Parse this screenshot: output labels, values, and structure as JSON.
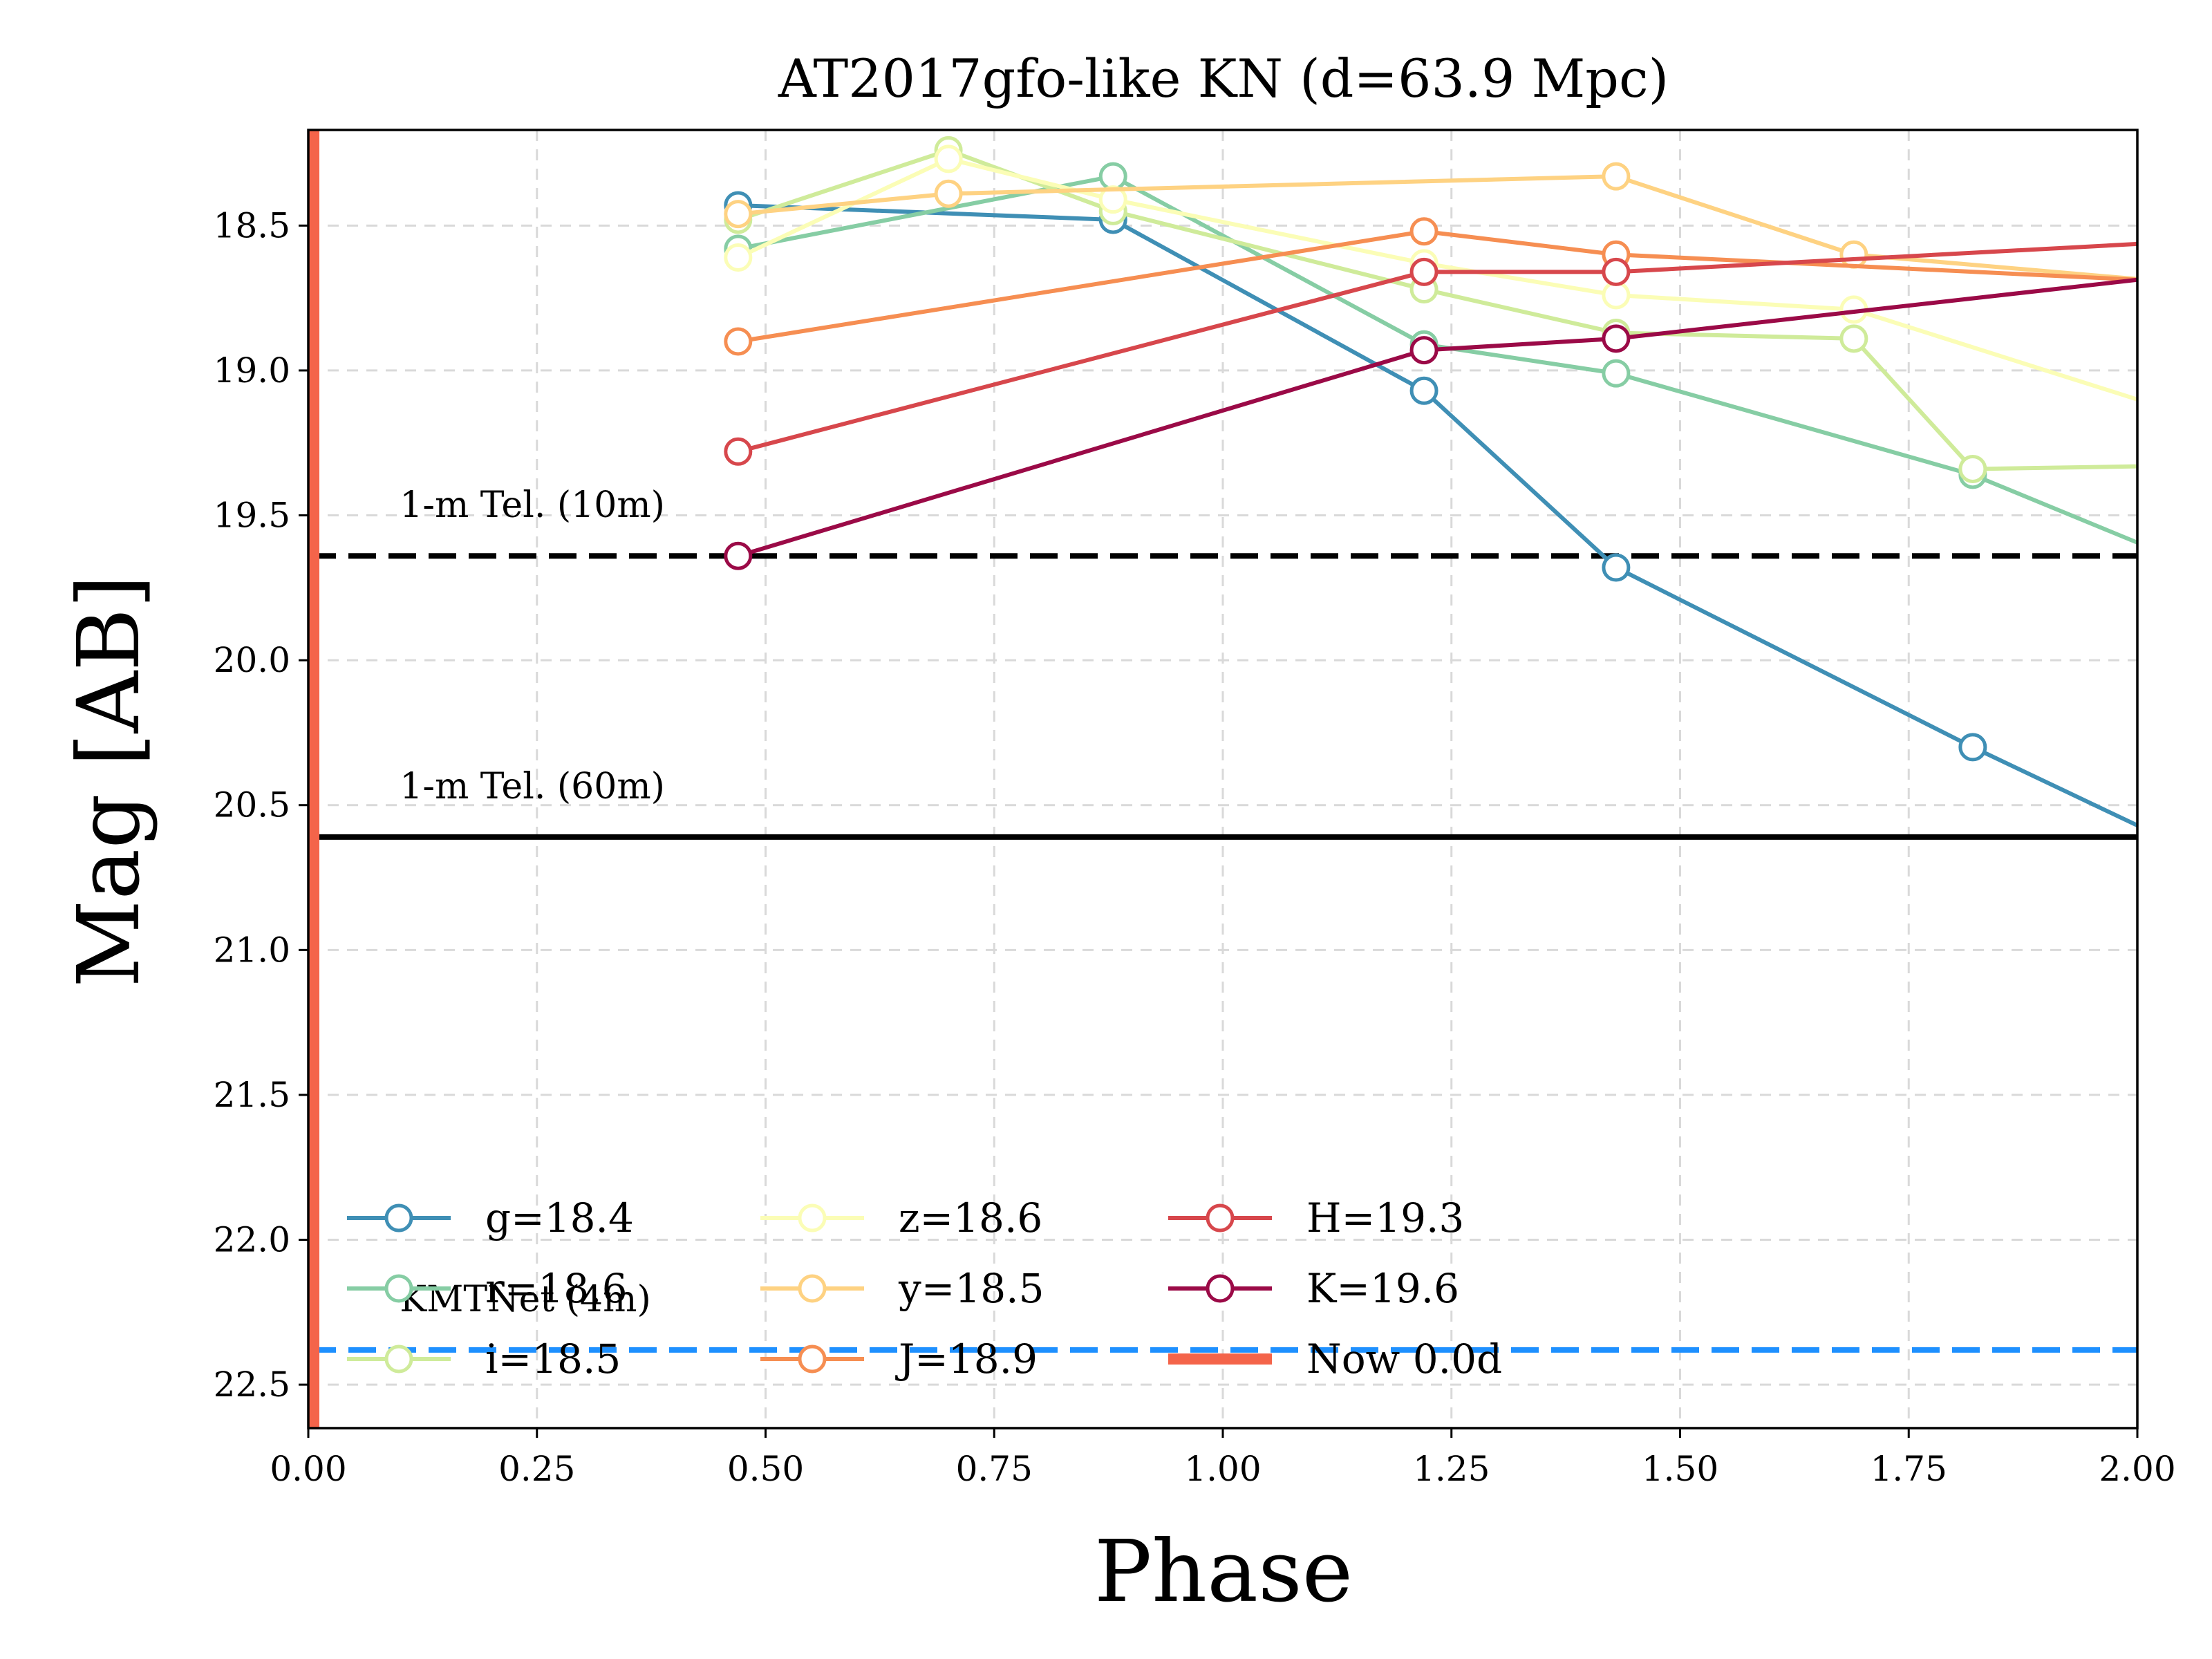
{
  "chart_data": {
    "type": "line",
    "title": "AT2017gfo-like KN (d=63.9 Mpc)",
    "xlabel": "Phase",
    "ylabel": "Mag [AB]",
    "xlim": [
      0.0,
      2.0
    ],
    "ylim": [
      22.65,
      18.17
    ],
    "y_inverted": true,
    "grid": true,
    "legend_location": "lower-left",
    "legend_columns": 3,
    "x_ticks": [
      0.0,
      0.25,
      0.5,
      0.75,
      1.0,
      1.25,
      1.5,
      1.75,
      2.0
    ],
    "x_tick_labels": [
      "0.00",
      "0.25",
      "0.50",
      "0.75",
      "1.00",
      "1.25",
      "1.50",
      "1.75",
      "2.00"
    ],
    "y_ticks": [
      18.5,
      19.0,
      19.5,
      20.0,
      20.5,
      21.0,
      21.5,
      22.0,
      22.5
    ],
    "y_tick_labels": [
      "18.5",
      "19.0",
      "19.5",
      "20.0",
      "20.5",
      "21.0",
      "21.5",
      "22.0",
      "22.5"
    ],
    "series": [
      {
        "name": "g=18.4",
        "color": "#3f8fb5",
        "x": [
          0.47,
          0.88,
          1.22,
          1.43,
          1.82,
          2.02
        ],
        "y": [
          18.43,
          18.48,
          19.07,
          19.68,
          20.3,
          20.6
        ]
      },
      {
        "name": "r=18.6",
        "color": "#86cda4",
        "x": [
          0.47,
          0.88,
          1.22,
          1.43,
          1.82,
          2.02
        ],
        "y": [
          18.58,
          18.33,
          18.91,
          19.01,
          19.36,
          19.62
        ]
      },
      {
        "name": "i=18.5",
        "color": "#cfeb9a",
        "x": [
          0.47,
          0.7,
          0.88,
          1.22,
          1.43,
          1.69,
          1.82,
          2.02
        ],
        "y": [
          18.48,
          18.24,
          18.45,
          18.72,
          18.87,
          18.89,
          19.34,
          19.33
        ]
      },
      {
        "name": "z=18.6",
        "color": "#fbfdb6",
        "x": [
          0.47,
          0.7,
          0.88,
          1.22,
          1.43,
          1.69,
          2.02
        ],
        "y": [
          18.61,
          18.27,
          18.41,
          18.63,
          18.74,
          18.79,
          19.12
        ]
      },
      {
        "name": "y=18.5",
        "color": "#fed282",
        "x": [
          0.47,
          0.7,
          1.43,
          1.69,
          2.02
        ],
        "y": [
          18.46,
          18.39,
          18.33,
          18.6,
          18.69
        ]
      },
      {
        "name": "J=18.9",
        "color": "#f68e52",
        "x": [
          0.47,
          1.22,
          1.43,
          2.02
        ],
        "y": [
          18.9,
          18.52,
          18.6,
          18.69
        ]
      },
      {
        "name": "H=19.3",
        "color": "#d7474c",
        "x": [
          0.47,
          1.22,
          1.43,
          2.02
        ],
        "y": [
          19.28,
          18.66,
          18.66,
          18.56
        ]
      },
      {
        "name": "K=19.6",
        "color": "#9b0a47",
        "x": [
          0.47,
          1.22,
          1.43,
          2.02
        ],
        "y": [
          19.64,
          18.93,
          18.89,
          18.68
        ]
      }
    ],
    "reference_lines": [
      {
        "label": "1-m Tel. (10m)",
        "y": 19.64,
        "color": "#000000",
        "style": "dashed"
      },
      {
        "label": "1-m Tel. (60m)",
        "y": 20.61,
        "color": "#000000",
        "style": "solid"
      },
      {
        "label": "KMTNet (4m)",
        "y": 22.38,
        "color": "#1e90ff",
        "style": "dashed"
      }
    ],
    "now_line": {
      "label": "Now 0.0d",
      "x": 0.0,
      "color": "#f4644a"
    }
  }
}
